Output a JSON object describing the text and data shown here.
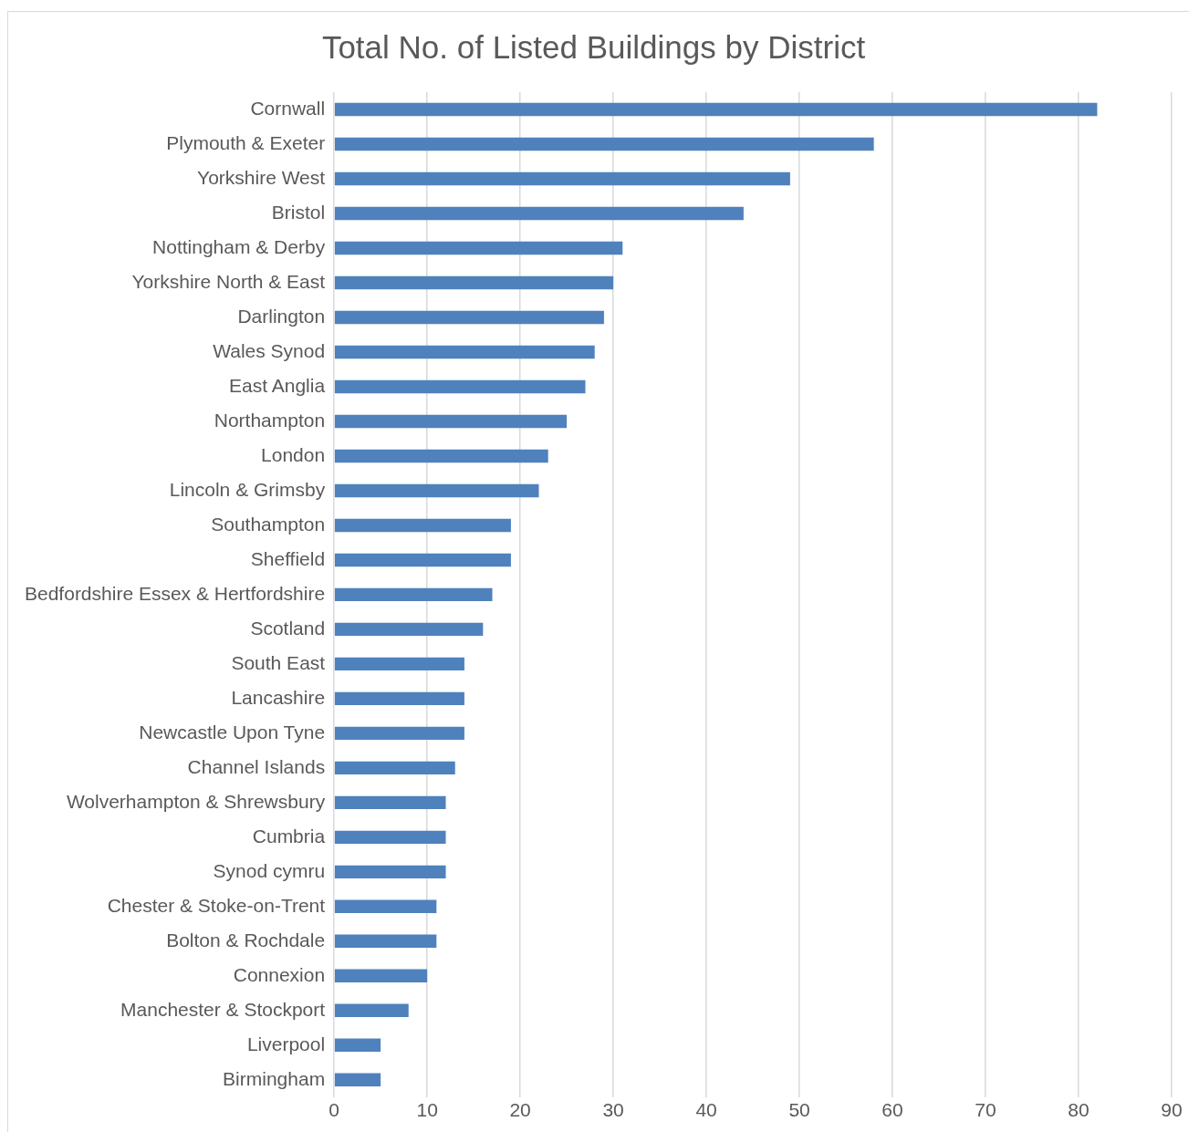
{
  "chart_data": {
    "type": "bar",
    "orientation": "horizontal",
    "title": "Total No. of Listed Buildings by District",
    "categories": [
      "Cornwall",
      "Plymouth & Exeter",
      "Yorkshire West",
      "Bristol",
      "Nottingham & Derby",
      "Yorkshire North & East",
      "Darlington",
      "Wales Synod",
      "East Anglia",
      "Northampton",
      "London",
      "Lincoln & Grimsby",
      "Southampton",
      "Sheffield",
      "Bedfordshire Essex & Hertfordshire",
      "Scotland",
      "South East",
      "Lancashire",
      "Newcastle Upon Tyne",
      "Channel Islands",
      "Wolverhampton & Shrewsbury",
      "Cumbria",
      "Synod cymru",
      "Chester & Stoke-on-Trent",
      "Bolton & Rochdale",
      "Connexion",
      "Manchester & Stockport",
      "Liverpool",
      "Birmingham"
    ],
    "values": [
      82,
      58,
      49,
      44,
      31,
      30,
      29,
      28,
      27,
      25,
      23,
      22,
      19,
      19,
      17,
      16,
      14,
      14,
      14,
      13,
      12,
      12,
      12,
      11,
      11,
      10,
      8,
      5,
      5
    ],
    "color": "#4f81bd",
    "xlim": [
      0,
      90
    ],
    "xticks": [
      0,
      10,
      20,
      30,
      40,
      50,
      60,
      70,
      80,
      90
    ],
    "grid": "x",
    "legend": false
  }
}
